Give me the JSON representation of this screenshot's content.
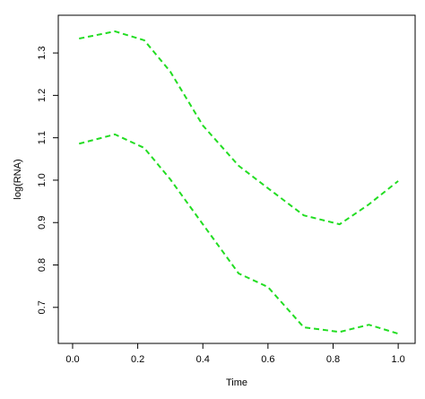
{
  "chart_data": {
    "type": "line",
    "x_label": "Time",
    "y_label": "log(RNA)",
    "x": [
      0.02,
      0.13,
      0.22,
      0.3,
      0.4,
      0.51,
      0.6,
      0.71,
      0.82,
      0.91,
      1.0
    ],
    "series": [
      {
        "color": "#22dd22",
        "values": [
          1.334,
          1.351,
          1.33,
          1.256,
          1.129,
          1.034,
          0.981,
          0.917,
          0.896,
          0.943,
          0.998
        ]
      },
      {
        "color": "#22dd22",
        "values": [
          1.086,
          1.108,
          1.076,
          1.002,
          0.896,
          0.78,
          0.748,
          0.653,
          0.642,
          0.659,
          0.638
        ]
      }
    ],
    "xlim": [
      -0.044,
      1.052
    ],
    "ylim": [
      0.615,
      1.389
    ],
    "xticks": [
      {
        "value": 0,
        "label": "0.0"
      },
      0.2,
      0.4,
      0.6,
      0.8,
      {
        "value": 1,
        "label": "1.0"
      }
    ],
    "yticks": [
      0.7,
      0.8,
      0.9,
      {
        "value": 1,
        "label": "1.0"
      },
      1.1,
      1.2,
      1.3
    ],
    "dashed": true
  }
}
